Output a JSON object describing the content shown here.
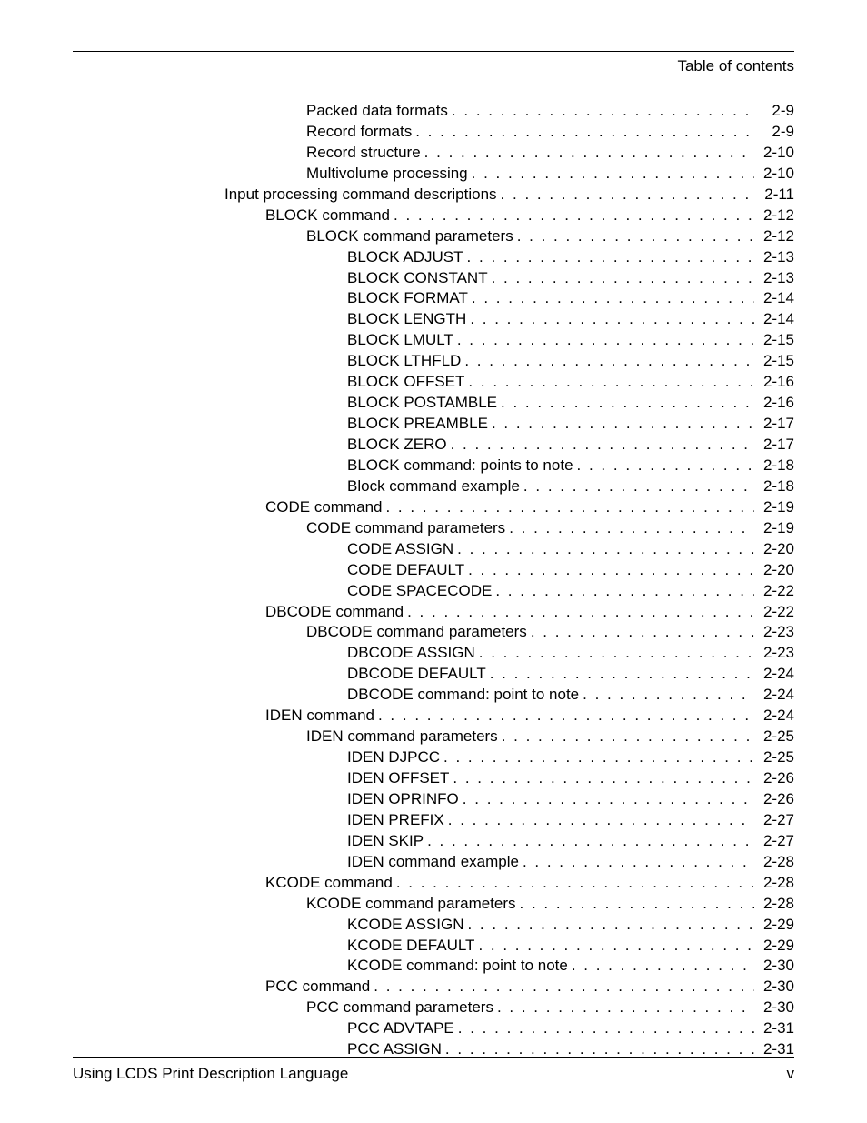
{
  "header": {
    "title": "Table of contents"
  },
  "footer": {
    "left": "Using LCDS Print Description Language",
    "right": "v"
  },
  "indents": {
    "l0": 167,
    "l1": 212,
    "l2": 257,
    "l3": 302
  },
  "toc_width_right": 795,
  "entries": [
    {
      "label": "Packed data formats",
      "page": "2-9",
      "indent": "l2"
    },
    {
      "label": "Record formats",
      "page": "2-9",
      "indent": "l2"
    },
    {
      "label": "Record structure",
      "page": "2-10",
      "indent": "l2"
    },
    {
      "label": "Multivolume processing",
      "page": "2-10",
      "indent": "l2"
    },
    {
      "label": "Input processing command descriptions",
      "page": "2-11",
      "indent": "l0"
    },
    {
      "label": "BLOCK command",
      "page": "2-12",
      "indent": "l1"
    },
    {
      "label": "BLOCK command parameters",
      "page": "2-12",
      "indent": "l2"
    },
    {
      "label": "BLOCK ADJUST",
      "page": "2-13",
      "indent": "l3"
    },
    {
      "label": "BLOCK CONSTANT",
      "page": "2-13",
      "indent": "l3"
    },
    {
      "label": "BLOCK FORMAT",
      "page": "2-14",
      "indent": "l3"
    },
    {
      "label": "BLOCK LENGTH",
      "page": "2-14",
      "indent": "l3"
    },
    {
      "label": "BLOCK LMULT",
      "page": "2-15",
      "indent": "l3"
    },
    {
      "label": "BLOCK LTHFLD",
      "page": "2-15",
      "indent": "l3"
    },
    {
      "label": "BLOCK OFFSET",
      "page": "2-16",
      "indent": "l3"
    },
    {
      "label": "BLOCK POSTAMBLE",
      "page": "2-16",
      "indent": "l3"
    },
    {
      "label": "BLOCK PREAMBLE",
      "page": "2-17",
      "indent": "l3"
    },
    {
      "label": "BLOCK ZERO",
      "page": "2-17",
      "indent": "l3"
    },
    {
      "label": "BLOCK command: points to note",
      "page": "2-18",
      "indent": "l3"
    },
    {
      "label": "Block command example",
      "page": "2-18",
      "indent": "l3"
    },
    {
      "label": "CODE command",
      "page": "2-19",
      "indent": "l1"
    },
    {
      "label": "CODE command parameters",
      "page": "2-19",
      "indent": "l2"
    },
    {
      "label": "CODE ASSIGN",
      "page": "2-20",
      "indent": "l3"
    },
    {
      "label": "CODE DEFAULT",
      "page": "2-20",
      "indent": "l3"
    },
    {
      "label": "CODE SPACECODE",
      "page": "2-22",
      "indent": "l3"
    },
    {
      "label": "DBCODE command",
      "page": "2-22",
      "indent": "l1"
    },
    {
      "label": "DBCODE command parameters",
      "page": "2-23",
      "indent": "l2"
    },
    {
      "label": "DBCODE ASSIGN",
      "page": "2-23",
      "indent": "l3"
    },
    {
      "label": "DBCODE DEFAULT",
      "page": "2-24",
      "indent": "l3"
    },
    {
      "label": "DBCODE command: point to note",
      "page": "2-24",
      "indent": "l3"
    },
    {
      "label": "IDEN command",
      "page": "2-24",
      "indent": "l1"
    },
    {
      "label": "IDEN command parameters",
      "page": "2-25",
      "indent": "l2"
    },
    {
      "label": "IDEN DJPCC",
      "page": "2-25",
      "indent": "l3"
    },
    {
      "label": "IDEN OFFSET",
      "page": "2-26",
      "indent": "l3"
    },
    {
      "label": "IDEN OPRINFO",
      "page": "2-26",
      "indent": "l3"
    },
    {
      "label": "IDEN PREFIX",
      "page": "2-27",
      "indent": "l3"
    },
    {
      "label": "IDEN SKIP",
      "page": "2-27",
      "indent": "l3"
    },
    {
      "label": "IDEN command example",
      "page": "2-28",
      "indent": "l3"
    },
    {
      "label": "KCODE command",
      "page": "2-28",
      "indent": "l1"
    },
    {
      "label": "KCODE command parameters",
      "page": "2-28",
      "indent": "l2"
    },
    {
      "label": "KCODE ASSIGN",
      "page": "2-29",
      "indent": "l3"
    },
    {
      "label": "KCODE DEFAULT",
      "page": "2-29",
      "indent": "l3"
    },
    {
      "label": "KCODE command: point to note",
      "page": "2-30",
      "indent": "l3"
    },
    {
      "label": "PCC command",
      "page": "2-30",
      "indent": "l1"
    },
    {
      "label": "PCC command parameters",
      "page": "2-30",
      "indent": "l2"
    },
    {
      "label": "PCC ADVTAPE",
      "page": "2-31",
      "indent": "l3"
    },
    {
      "label": "PCC ASSIGN",
      "page": "2-31",
      "indent": "l3"
    }
  ]
}
